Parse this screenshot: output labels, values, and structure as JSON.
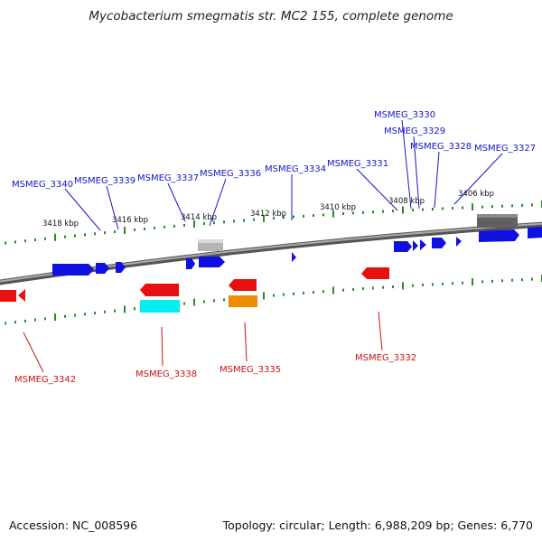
{
  "title": "Mycobacterium smegmatis str. MC2 155, complete genome",
  "accession": "Accession: NC_008596",
  "stats": "Topology: circular; Length: 6,988,209 bp; Genes: 6,770",
  "colors": {
    "forward_label": "#1515c8",
    "reverse_label": "#cc1010",
    "tick": "#2a8a2a",
    "backbone": "#777777",
    "gene_blue": "#1010e0",
    "gene_red": "#e81010",
    "gene_cyan": "#00f0f0",
    "gene_orange": "#f08c00",
    "gene_gray_light": "#b4b4b4",
    "gene_gray_dark": "#606060"
  },
  "kbp_labels": [
    "3418 kbp",
    "3416 kbp",
    "3414 kbp",
    "3412 kbp",
    "3410 kbp",
    "3408 kbp",
    "3406 kbp"
  ],
  "forward_genes": [
    "MSMEG_3340",
    "MSMEG_3339",
    "MSMEG_3337",
    "MSMEG_3336",
    "MSMEG_3334",
    "MSMEG_3331",
    "MSMEG_3330",
    "MSMEG_3329",
    "MSMEG_3328",
    "MSMEG_3327"
  ],
  "reverse_genes": [
    "MSMEG_3342",
    "MSMEG_3338",
    "MSMEG_3335",
    "MSMEG_3332"
  ]
}
